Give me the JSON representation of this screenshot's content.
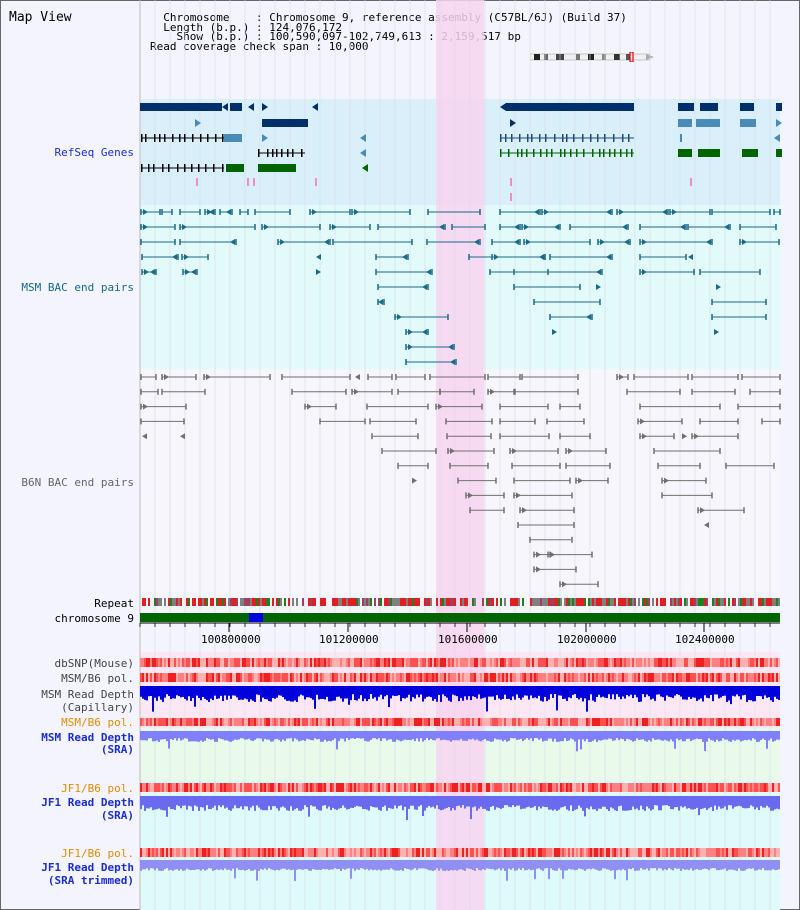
{
  "header": {
    "title": "Map View",
    "info_lines": [
      "  Chromosome    : Chromosome 9, reference assembly (C57BL/6J) (Build 37)",
      "  Length (b.p.) : 124,076,172",
      "    Show (b.p.) : 100,590,097-102,749,613 : 2,159,517 bp",
      "Read coverage check span : 10,000"
    ]
  },
  "tracks": {
    "refseq": "RefSeq Genes",
    "msm_bac": "MSM BAC end pairs",
    "b6n_bac": "B6N BAC end pairs",
    "repeat": "Repeat",
    "chromosome": "chromosome 9",
    "dbsnp": "dbSNP(Mouse)",
    "msm_b6_pol_1": "MSM/B6 pol.",
    "msm_read_depth_cap": "MSM Read Depth",
    "msm_read_depth_cap_sub": "(Capillary)",
    "msm_b6_pol_2": "MSM/B6 pol.",
    "msm_read_depth_sra": "MSM Read Depth",
    "msm_read_depth_sra_sub": "(SRA)",
    "jf1_b6_pol_1": "JF1/B6 pol.",
    "jf1_read_depth_sra": "JF1 Read Depth",
    "jf1_read_depth_sra_sub": "(SRA)",
    "jf1_b6_pol_2": "JF1/B6 pol.",
    "jf1_read_depth_trim": "JF1 Read Depth",
    "jf1_read_depth_trim_sub": "(SRA trimmed)"
  },
  "axis": {
    "ticks": [
      "100800000",
      "101200000",
      "101600000",
      "102000000",
      "102400000"
    ]
  },
  "colors": {
    "refseq_bg": "#d9f0fb",
    "msm_bg": "#e2fafa",
    "b6n_bg": "#f6f6fc",
    "highlight": "#f8d4f0",
    "refseq_dark": "#002f6c",
    "refseq_mid": "#4a8ab8",
    "refseq_green": "#006400",
    "msm_line": "#1a6a8a",
    "b6n_line": "#707070",
    "chromosome_green": "#006400",
    "depth_blue": "#0000dd",
    "depth_light": "#8080ff"
  }
}
